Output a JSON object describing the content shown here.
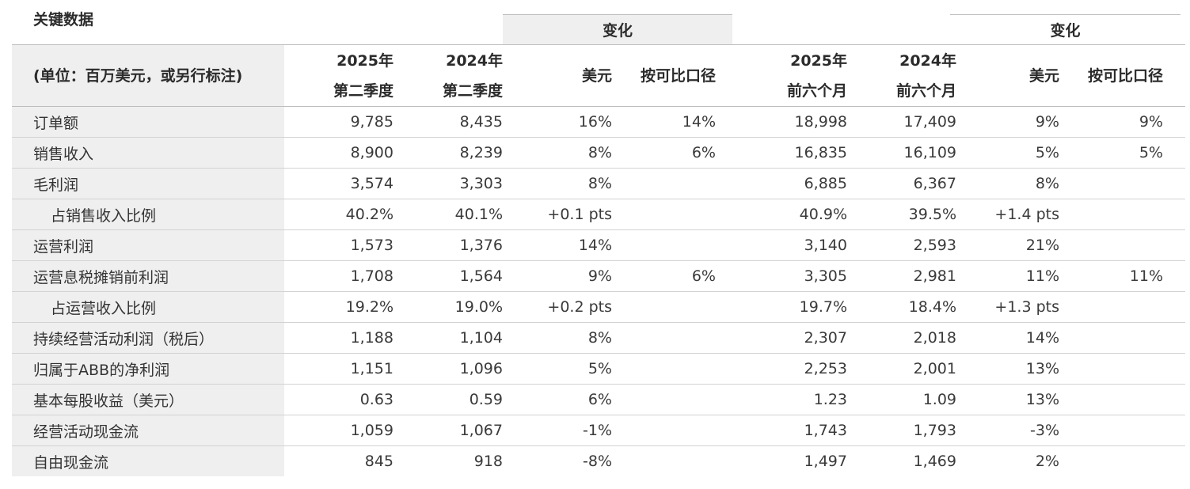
{
  "title": "关键数据",
  "change_group_label_1": "变化",
  "change_group_label_2": "变化",
  "headers": {
    "unit": "(单位：百万美元，或另行标注)",
    "q2_2025": [
      "2025年",
      "第二季度"
    ],
    "q2_2024": [
      "2024年",
      "第二季度"
    ],
    "usd": "美元",
    "comparable": "按可比口径",
    "h1_2025": [
      "2025年",
      "前六个月"
    ],
    "h1_2024": [
      "2024年",
      "前六个月"
    ],
    "usd_h1": "美元",
    "comparable_h1": "按可比口径"
  },
  "rows": [
    {
      "label": "订单额",
      "indent": false,
      "cells": [
        "9,785",
        "8,435",
        "16%",
        "14%",
        "18,998",
        "17,409",
        "9%",
        "9%"
      ]
    },
    {
      "label": "销售收入",
      "indent": false,
      "cells": [
        "8,900",
        "8,239",
        "8%",
        "6%",
        "16,835",
        "16,109",
        "5%",
        "5%"
      ]
    },
    {
      "label": "毛利润",
      "indent": false,
      "cells": [
        "3,574",
        "3,303",
        "8%",
        "",
        "6,885",
        "6,367",
        "8%",
        ""
      ]
    },
    {
      "label": "占销售收入比例",
      "indent": true,
      "cells": [
        "40.2%",
        "40.1%",
        "+0.1 pts",
        "",
        "40.9%",
        "39.5%",
        "+1.4 pts",
        ""
      ]
    },
    {
      "label": "运营利润",
      "indent": false,
      "cells": [
        "1,573",
        "1,376",
        "14%",
        "",
        "3,140",
        "2,593",
        "21%",
        ""
      ]
    },
    {
      "label": "运营息税摊销前利润",
      "indent": false,
      "cells": [
        "1,708",
        "1,564",
        "9%",
        "6%",
        "3,305",
        "2,981",
        "11%",
        "11%"
      ]
    },
    {
      "label": "占运营收入比例",
      "indent": true,
      "cells": [
        "19.2%",
        "19.0%",
        "+0.2 pts",
        "",
        "19.7%",
        "18.4%",
        "+1.3 pts",
        ""
      ]
    },
    {
      "label": "持续经营活动利润（税后）",
      "indent": false,
      "cells": [
        "1,188",
        "1,104",
        "8%",
        "",
        "2,307",
        "2,018",
        "14%",
        ""
      ]
    },
    {
      "label": "归属于ABB的净利润",
      "indent": false,
      "cells": [
        "1,151",
        "1,096",
        "5%",
        "",
        "2,253",
        "2,001",
        "13%",
        ""
      ]
    },
    {
      "label": "基本每股收益（美元）",
      "indent": false,
      "cells": [
        "0.63",
        "0.59",
        "6%",
        "",
        "1.23",
        "1.09",
        "13%",
        ""
      ]
    },
    {
      "label": "经营活动现金流",
      "indent": false,
      "cells": [
        "1,059",
        "1,067",
        "-1%",
        "",
        "1,743",
        "1,793",
        "-3%",
        ""
      ]
    },
    {
      "label": "自由现金流",
      "indent": false,
      "cells": [
        "845",
        "918",
        "-8%",
        "",
        "1,497",
        "1,469",
        "2%",
        ""
      ]
    }
  ]
}
